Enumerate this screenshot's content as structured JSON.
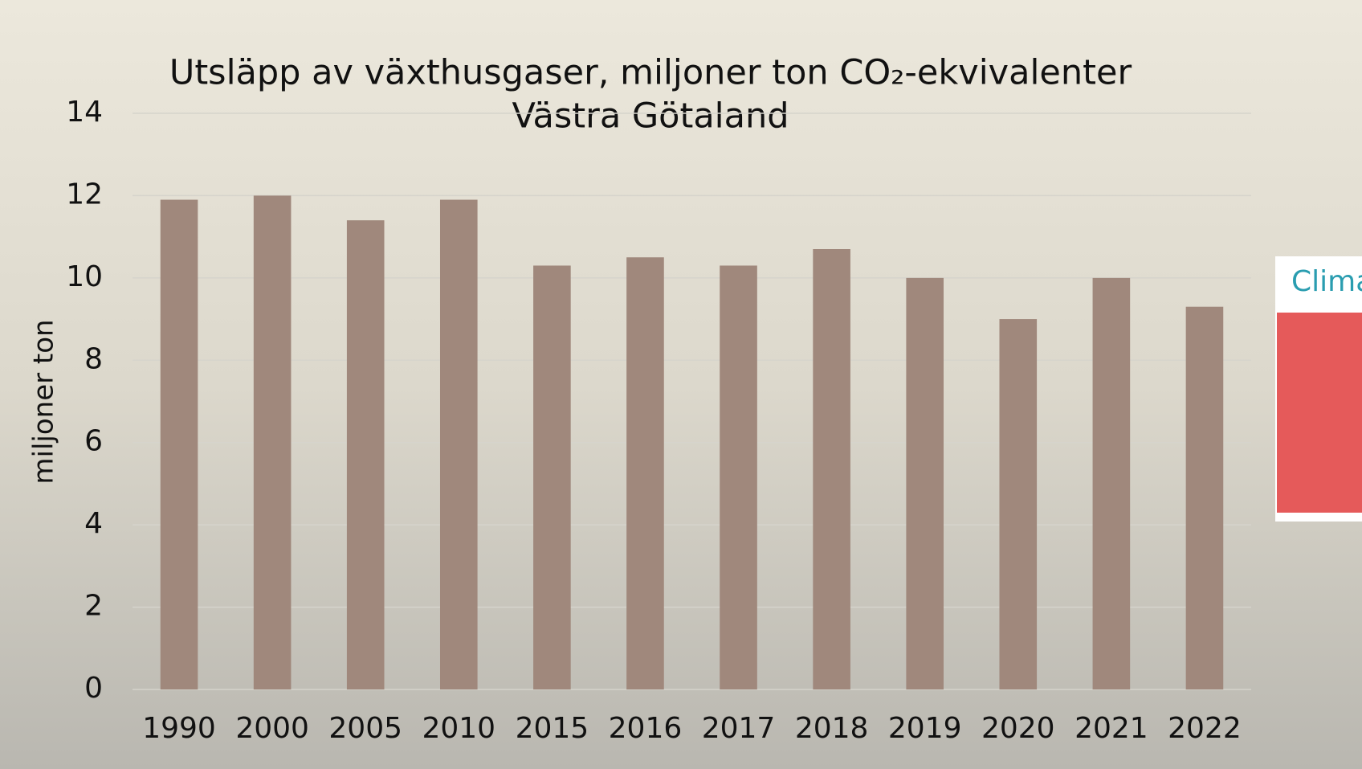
{
  "chart_data": {
    "type": "bar",
    "title": "Utsläpp av växthusgaser, miljoner ton CO₂-ekvivalenter",
    "subtitle": "Västra Götaland",
    "y_label": "miljoner ton",
    "categories": [
      "1990",
      "2000",
      "2005",
      "2010",
      "2015",
      "2016",
      "2017",
      "2018",
      "2019",
      "2020",
      "2021",
      "2022"
    ],
    "values": [
      11.9,
      12.0,
      11.4,
      11.9,
      10.3,
      10.5,
      10.3,
      10.7,
      10.0,
      9.0,
      10.0,
      9.3
    ],
    "color": "#a0887c",
    "ylim": [
      0,
      14
    ],
    "yticks": [
      0,
      2,
      4,
      6,
      8,
      10,
      12,
      14
    ],
    "grid": true
  },
  "inset": {
    "title": "Clima"
  }
}
